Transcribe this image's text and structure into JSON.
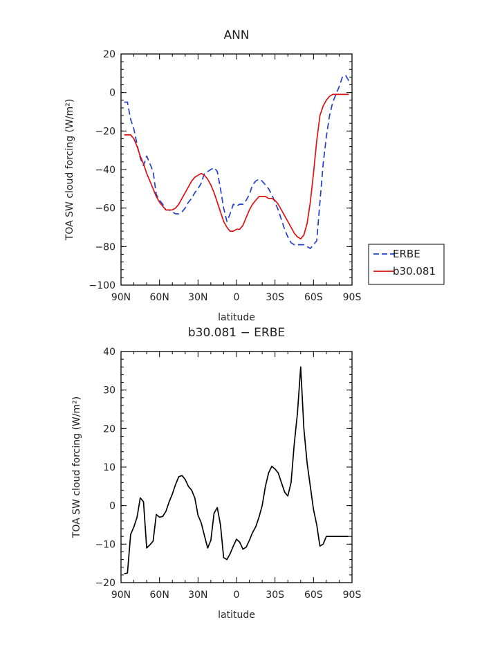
{
  "chart_data": [
    {
      "type": "line",
      "title": "ANN",
      "xlabel": "latitude",
      "ylabel": "TOA SW cloud forcing (W/m²)",
      "x_tick_labels": [
        "90N",
        "60N",
        "30N",
        "0",
        "30S",
        "60S",
        "90S"
      ],
      "x_ticks": [
        90,
        60,
        30,
        0,
        -30,
        -60,
        -90
      ],
      "xlim": [
        90,
        -90
      ],
      "ylim": [
        -100,
        20
      ],
      "y_ticks": [
        20,
        0,
        -20,
        -40,
        -60,
        -80,
        -100
      ],
      "y_tick_labels": [
        "20",
        "0",
        "−20",
        "−40",
        "−60",
        "−80",
        "−100"
      ],
      "legend_position": "right",
      "series": [
        {
          "name": "ERBE",
          "color": "#1f3fcc",
          "style": "dashed",
          "x": [
            87.5,
            85,
            82.5,
            80,
            77.5,
            75,
            72.5,
            70,
            67.5,
            65,
            62.5,
            60,
            57.5,
            55,
            52.5,
            50,
            47.5,
            45,
            42.5,
            40,
            37.5,
            35,
            32.5,
            30,
            27.5,
            25,
            22.5,
            20,
            17.5,
            15,
            12.5,
            10,
            7.5,
            5,
            2.5,
            0,
            -2.5,
            -5,
            -7.5,
            -10,
            -12.5,
            -15,
            -17.5,
            -20,
            -22.5,
            -25,
            -27.5,
            -30,
            -32.5,
            -35,
            -37.5,
            -40,
            -42.5,
            -45,
            -47.5,
            -50,
            -52.5,
            -55,
            -57.5,
            -60,
            -62.5,
            -65,
            -67.5,
            -70,
            -72.5,
            -75,
            -77.5,
            -80,
            -82.5,
            -85,
            -87.5
          ],
          "y": [
            -5,
            -5,
            -14,
            -19,
            -27,
            -34,
            -38,
            -33,
            -37,
            -41,
            -53,
            -56,
            -58,
            -61,
            -61,
            -62,
            -63,
            -63,
            -62,
            -60,
            -57,
            -55,
            -52,
            -50,
            -47,
            -42,
            -41,
            -40,
            -39,
            -41,
            -50,
            -60,
            -67,
            -63,
            -58,
            -59,
            -58,
            -58,
            -56,
            -53,
            -48,
            -46,
            -45,
            -46,
            -48,
            -50,
            -53,
            -57,
            -61,
            -66,
            -71,
            -75,
            -78,
            -79,
            -79,
            -79,
            -79,
            -80,
            -81,
            -79,
            -77,
            -57,
            -37,
            -23,
            -12,
            -5,
            -1,
            3,
            8,
            9,
            6
          ]
        },
        {
          "name": "b30.081",
          "color": "#dd1111",
          "style": "solid",
          "x": [
            87.5,
            85,
            82.5,
            80,
            77.5,
            75,
            72.5,
            70,
            67.5,
            65,
            62.5,
            60,
            57.5,
            55,
            52.5,
            50,
            47.5,
            45,
            42.5,
            40,
            37.5,
            35,
            32.5,
            30,
            27.5,
            25,
            22.5,
            20,
            17.5,
            15,
            12.5,
            10,
            7.5,
            5,
            2.5,
            0,
            -2.5,
            -5,
            -7.5,
            -10,
            -12.5,
            -15,
            -17.5,
            -20,
            -22.5,
            -25,
            -27.5,
            -30,
            -32.5,
            -35,
            -37.5,
            -40,
            -42.5,
            -45,
            -47.5,
            -50,
            -52.5,
            -55,
            -57.5,
            -60,
            -62.5,
            -65,
            -67.5,
            -70,
            -72.5,
            -75,
            -77.5,
            -80,
            -82.5,
            -85,
            -87.5
          ],
          "y": [
            -22,
            -22,
            -22,
            -24,
            -28,
            -33,
            -37,
            -42,
            -46,
            -50,
            -54,
            -57,
            -59,
            -61,
            -61,
            -61,
            -60,
            -58,
            -55,
            -52,
            -49,
            -46,
            -44,
            -43,
            -42,
            -43,
            -45,
            -48,
            -52,
            -57,
            -62,
            -67,
            -70,
            -72,
            -72,
            -71,
            -71,
            -69,
            -65,
            -61,
            -58,
            -56,
            -54,
            -54,
            -54,
            -55,
            -55,
            -56,
            -58,
            -61,
            -64,
            -67,
            -70,
            -73,
            -75,
            -76,
            -74,
            -68,
            -57,
            -42,
            -25,
            -12,
            -7,
            -4,
            -2,
            -1,
            -1,
            -1,
            -1,
            -1,
            -1
          ]
        }
      ]
    },
    {
      "type": "line",
      "title": "b30.081 − ERBE",
      "xlabel": "latitude",
      "ylabel": "TOA SW cloud forcing (W/m²)",
      "x_tick_labels": [
        "90N",
        "60N",
        "30N",
        "0",
        "30S",
        "60S",
        "90S"
      ],
      "x_ticks": [
        90,
        60,
        30,
        0,
        -30,
        -60,
        -90
      ],
      "xlim": [
        90,
        -90
      ],
      "ylim": [
        -20,
        40
      ],
      "y_ticks": [
        40,
        30,
        20,
        10,
        0,
        -10,
        -20
      ],
      "y_tick_labels": [
        "40",
        "30",
        "20",
        "10",
        "0",
        "−10",
        "−20"
      ],
      "series": [
        {
          "color": "#000000",
          "style": "solid",
          "x": [
            87.5,
            85,
            82.5,
            80,
            77.5,
            75,
            72.5,
            70,
            67.5,
            65,
            62.5,
            60,
            57.5,
            55,
            52.5,
            50,
            47.5,
            45,
            42.5,
            40,
            37.5,
            35,
            32.5,
            30,
            27.5,
            25,
            22.5,
            20,
            17.5,
            15,
            12.5,
            10,
            7.5,
            5,
            2.5,
            0,
            -2.5,
            -5,
            -7.5,
            -10,
            -12.5,
            -15,
            -17.5,
            -20,
            -22.5,
            -25,
            -27.5,
            -30,
            -32.5,
            -35,
            -37.5,
            -40,
            -42.5,
            -45,
            -47.5,
            -50,
            -52.5,
            -55,
            -57.5,
            -60,
            -62.5,
            -65,
            -67.5,
            -70,
            -72.5,
            -75,
            -77.5,
            -80,
            -82.5,
            -85,
            -87.5
          ],
          "y": [
            -17.7,
            -17.5,
            -7.5,
            -5.5,
            -3,
            2,
            1,
            -11,
            -10.2,
            -9.2,
            -2.3,
            -3,
            -2.8,
            -1.5,
            1,
            3,
            5.5,
            7.5,
            7.8,
            6.8,
            5,
            4,
            2,
            -2.5,
            -4.5,
            -7.8,
            -11,
            -9,
            -2,
            -0.5,
            -5,
            -13.5,
            -14,
            -12.5,
            -10.5,
            -8.7,
            -9.5,
            -11.3,
            -10.8,
            -9,
            -7,
            -5.5,
            -3,
            0,
            5,
            8.5,
            10.2,
            9.5,
            8.5,
            6,
            3.5,
            2.5,
            6,
            16,
            24,
            36,
            20,
            11,
            5,
            -1,
            -5,
            -10.5,
            -10,
            -8,
            -8,
            -8,
            -8,
            -8,
            -8,
            -8,
            -8
          ]
        }
      ]
    }
  ],
  "legend": {
    "items": [
      {
        "label": "ERBE",
        "color": "#1f3fcc",
        "style": "dashed"
      },
      {
        "label": "b30.081",
        "color": "#dd1111",
        "style": "solid"
      }
    ]
  }
}
